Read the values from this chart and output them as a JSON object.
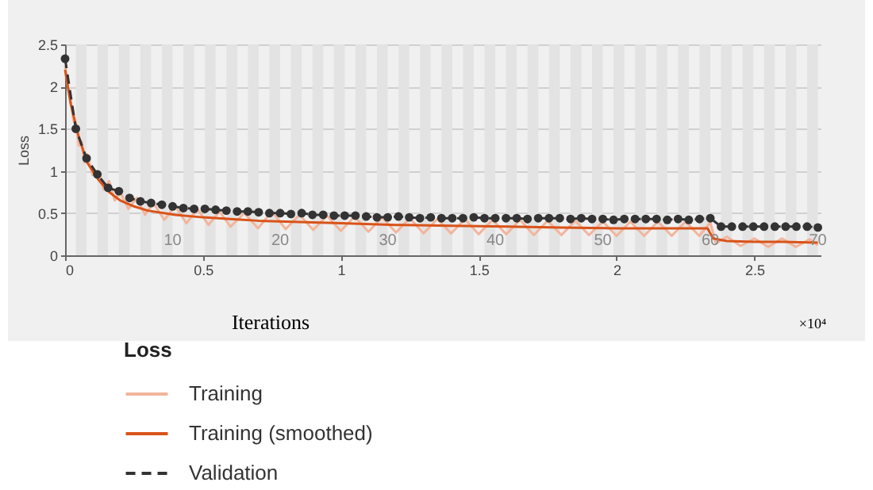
{
  "chart_data": {
    "type": "line",
    "xlabel": "Iterations",
    "ylabel": "Loss",
    "legend_title": "Loss",
    "legend": "bottom",
    "grid": "y",
    "xlim": [
      0,
      2.74
    ],
    "xticks": [
      0,
      0.5,
      1,
      1.5,
      2,
      2.5
    ],
    "ylim": [
      0,
      2.5
    ],
    "yticks": [
      0,
      0.5,
      1,
      1.5,
      2,
      2.5
    ],
    "annotations": [
      "×10⁴",
      {
        "text": "10",
        "x": 0.39,
        "y": 0.18
      },
      {
        "text": "20",
        "x": 0.78,
        "y": 0.18
      },
      {
        "text": "30",
        "x": 1.17,
        "y": 0.18
      },
      {
        "text": "40",
        "x": 1.56,
        "y": 0.18
      },
      {
        "text": "50",
        "x": 1.95,
        "y": 0.18
      },
      {
        "text": "60",
        "x": 2.34,
        "y": 0.18
      },
      {
        "text": "70",
        "x": 2.73,
        "y": 0.18
      }
    ],
    "bands": [
      {
        "axis": "x",
        "from": 0.039,
        "to": 0.078,
        "color": "#e3e3e3"
      },
      {
        "axis": "x",
        "from": 0.117,
        "to": 0.156,
        "color": "#e3e3e3"
      },
      {
        "axis": "x",
        "from": 0.195,
        "to": 0.234,
        "color": "#e3e3e3"
      },
      {
        "axis": "x",
        "from": 0.273,
        "to": 0.312,
        "color": "#e3e3e3"
      },
      {
        "axis": "x",
        "from": 0.351,
        "to": 0.39,
        "color": "#e3e3e3"
      },
      {
        "axis": "x",
        "from": 0.429,
        "to": 0.468,
        "color": "#e3e3e3"
      },
      {
        "axis": "x",
        "from": 0.507,
        "to": 0.546,
        "color": "#e3e3e3"
      },
      {
        "axis": "x",
        "from": 0.585,
        "to": 0.624,
        "color": "#e3e3e3"
      },
      {
        "axis": "x",
        "from": 0.663,
        "to": 0.702,
        "color": "#e3e3e3"
      },
      {
        "axis": "x",
        "from": 0.741,
        "to": 0.78,
        "color": "#e3e3e3"
      },
      {
        "axis": "x",
        "from": 0.819,
        "to": 0.858,
        "color": "#e3e3e3"
      },
      {
        "axis": "x",
        "from": 0.897,
        "to": 0.936,
        "color": "#e3e3e3"
      },
      {
        "axis": "x",
        "from": 0.975,
        "to": 1.014,
        "color": "#e3e3e3"
      },
      {
        "axis": "x",
        "from": 1.053,
        "to": 1.092,
        "color": "#e3e3e3"
      },
      {
        "axis": "x",
        "from": 1.131,
        "to": 1.17,
        "color": "#e3e3e3"
      },
      {
        "axis": "x",
        "from": 1.209,
        "to": 1.248,
        "color": "#e3e3e3"
      },
      {
        "axis": "x",
        "from": 1.287,
        "to": 1.326,
        "color": "#e3e3e3"
      },
      {
        "axis": "x",
        "from": 1.365,
        "to": 1.404,
        "color": "#e3e3e3"
      },
      {
        "axis": "x",
        "from": 1.443,
        "to": 1.482,
        "color": "#e3e3e3"
      },
      {
        "axis": "x",
        "from": 1.521,
        "to": 1.56,
        "color": "#e3e3e3"
      },
      {
        "axis": "x",
        "from": 1.599,
        "to": 1.638,
        "color": "#e3e3e3"
      },
      {
        "axis": "x",
        "from": 1.677,
        "to": 1.716,
        "color": "#e3e3e3"
      },
      {
        "axis": "x",
        "from": 1.755,
        "to": 1.794,
        "color": "#e3e3e3"
      },
      {
        "axis": "x",
        "from": 1.833,
        "to": 1.872,
        "color": "#e3e3e3"
      },
      {
        "axis": "x",
        "from": 1.911,
        "to": 1.95,
        "color": "#e3e3e3"
      },
      {
        "axis": "x",
        "from": 1.989,
        "to": 2.028,
        "color": "#e3e3e3"
      },
      {
        "axis": "x",
        "from": 2.067,
        "to": 2.106,
        "color": "#e3e3e3"
      },
      {
        "axis": "x",
        "from": 2.145,
        "to": 2.184,
        "color": "#e3e3e3"
      },
      {
        "axis": "x",
        "from": 2.223,
        "to": 2.262,
        "color": "#e3e3e3"
      },
      {
        "axis": "x",
        "from": 2.301,
        "to": 2.34,
        "color": "#e3e3e3"
      },
      {
        "axis": "x",
        "from": 2.379,
        "to": 2.418,
        "color": "#e3e3e3"
      },
      {
        "axis": "x",
        "from": 2.457,
        "to": 2.496,
        "color": "#e3e3e3"
      },
      {
        "axis": "x",
        "from": 2.535,
        "to": 2.574,
        "color": "#e3e3e3"
      },
      {
        "axis": "x",
        "from": 2.613,
        "to": 2.652,
        "color": "#e3e3e3"
      },
      {
        "axis": "x",
        "from": 2.691,
        "to": 2.73,
        "color": "#e3e3e3"
      }
    ],
    "series": [
      {
        "name": "Training",
        "color": "#f2b59c",
        "marker": "none",
        "line_style": "solid",
        "x": [
          0,
          0.01,
          0.02,
          0.03,
          0.04,
          0.05,
          0.06,
          0.07,
          0.08,
          0.1,
          0.12,
          0.14,
          0.16,
          0.18,
          0.2,
          0.23,
          0.26,
          0.29,
          0.32,
          0.36,
          0.4,
          0.44,
          0.48,
          0.52,
          0.56,
          0.6,
          0.65,
          0.7,
          0.75,
          0.8,
          0.85,
          0.9,
          0.95,
          1.0,
          1.05,
          1.1,
          1.15,
          1.2,
          1.25,
          1.3,
          1.35,
          1.4,
          1.45,
          1.5,
          1.55,
          1.6,
          1.65,
          1.7,
          1.75,
          1.8,
          1.85,
          1.9,
          1.95,
          2.0,
          2.05,
          2.1,
          2.15,
          2.2,
          2.25,
          2.3,
          2.34,
          2.36,
          2.4,
          2.45,
          2.5,
          2.55,
          2.6,
          2.65,
          2.7,
          2.73
        ],
        "values": [
          2.25,
          2.0,
          1.85,
          1.6,
          1.55,
          1.3,
          1.35,
          1.1,
          1.2,
          0.95,
          1.0,
          0.78,
          0.88,
          0.65,
          0.75,
          0.55,
          0.68,
          0.48,
          0.62,
          0.42,
          0.58,
          0.38,
          0.55,
          0.36,
          0.52,
          0.34,
          0.5,
          0.32,
          0.52,
          0.31,
          0.48,
          0.3,
          0.47,
          0.29,
          0.46,
          0.28,
          0.45,
          0.27,
          0.44,
          0.26,
          0.43,
          0.26,
          0.43,
          0.25,
          0.42,
          0.25,
          0.42,
          0.24,
          0.41,
          0.24,
          0.41,
          0.24,
          0.4,
          0.23,
          0.4,
          0.23,
          0.4,
          0.23,
          0.4,
          0.23,
          0.39,
          0.14,
          0.22,
          0.11,
          0.2,
          0.1,
          0.2,
          0.1,
          0.19,
          0.12
        ]
      },
      {
        "name": "Training (smoothed)",
        "color": "#d95319",
        "marker": "none",
        "line_style": "solid",
        "x": [
          0,
          0.02,
          0.05,
          0.08,
          0.12,
          0.16,
          0.2,
          0.25,
          0.3,
          0.4,
          0.5,
          0.6,
          0.7,
          0.8,
          1.0,
          1.2,
          1.4,
          1.6,
          1.8,
          2.0,
          2.2,
          2.33,
          2.35,
          2.4,
          2.5,
          2.6,
          2.73
        ],
        "values": [
          2.2,
          1.8,
          1.4,
          1.1,
          0.9,
          0.75,
          0.65,
          0.58,
          0.53,
          0.48,
          0.45,
          0.43,
          0.41,
          0.4,
          0.38,
          0.36,
          0.35,
          0.34,
          0.33,
          0.32,
          0.32,
          0.32,
          0.2,
          0.17,
          0.16,
          0.16,
          0.15
        ]
      },
      {
        "name": "Validation",
        "color": "#333333",
        "marker": "circle",
        "line_style": "dashed",
        "x": [
          0,
          0.039,
          0.078,
          0.117,
          0.156,
          0.195,
          0.234,
          0.273,
          0.312,
          0.351,
          0.39,
          0.429,
          0.468,
          0.507,
          0.546,
          0.585,
          0.624,
          0.663,
          0.702,
          0.741,
          0.78,
          0.819,
          0.858,
          0.897,
          0.936,
          0.975,
          1.014,
          1.053,
          1.092,
          1.131,
          1.17,
          1.209,
          1.248,
          1.287,
          1.326,
          1.365,
          1.404,
          1.443,
          1.482,
          1.521,
          1.56,
          1.599,
          1.638,
          1.677,
          1.716,
          1.755,
          1.794,
          1.833,
          1.872,
          1.911,
          1.95,
          1.989,
          2.028,
          2.067,
          2.106,
          2.145,
          2.184,
          2.223,
          2.262,
          2.301,
          2.34,
          2.379,
          2.418,
          2.457,
          2.496,
          2.535,
          2.574,
          2.613,
          2.652,
          2.691,
          2.73
        ],
        "values": [
          2.33,
          1.5,
          1.15,
          0.96,
          0.8,
          0.76,
          0.68,
          0.64,
          0.62,
          0.6,
          0.58,
          0.56,
          0.55,
          0.55,
          0.54,
          0.53,
          0.52,
          0.52,
          0.51,
          0.5,
          0.5,
          0.49,
          0.5,
          0.48,
          0.48,
          0.47,
          0.47,
          0.47,
          0.46,
          0.45,
          0.45,
          0.46,
          0.45,
          0.44,
          0.45,
          0.44,
          0.44,
          0.44,
          0.45,
          0.44,
          0.44,
          0.44,
          0.44,
          0.43,
          0.44,
          0.44,
          0.44,
          0.43,
          0.44,
          0.43,
          0.43,
          0.42,
          0.43,
          0.43,
          0.43,
          0.43,
          0.42,
          0.43,
          0.42,
          0.43,
          0.44,
          0.34,
          0.34,
          0.34,
          0.34,
          0.34,
          0.34,
          0.34,
          0.34,
          0.34,
          0.33
        ]
      }
    ]
  }
}
